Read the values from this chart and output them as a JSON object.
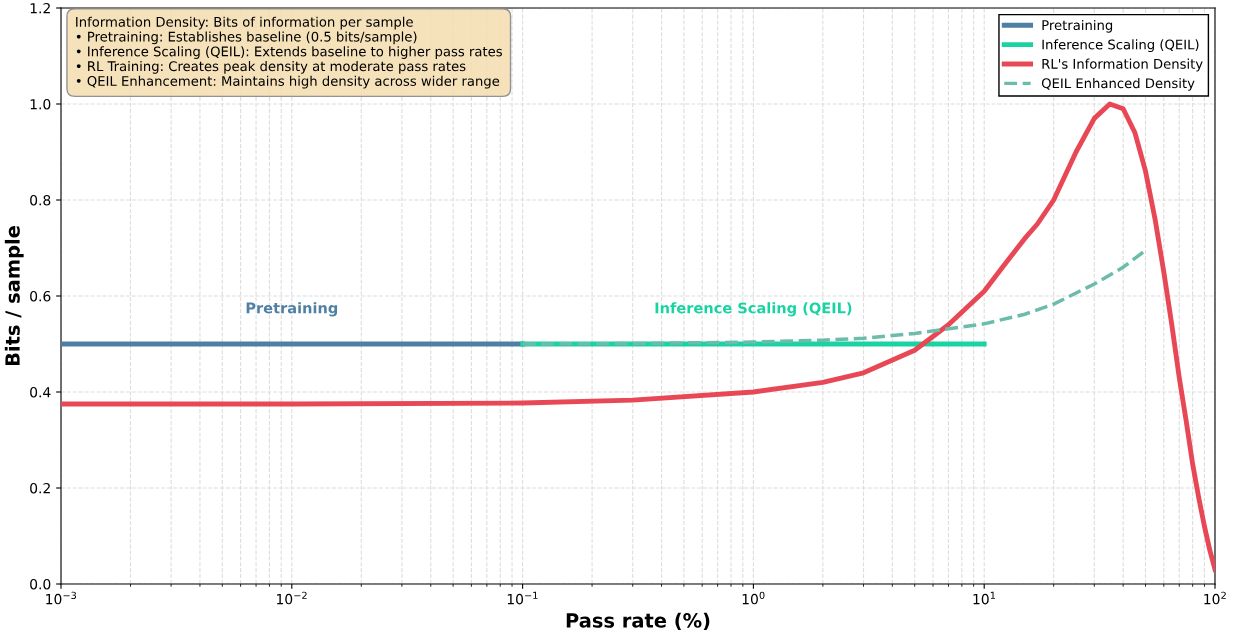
{
  "chart_data": {
    "type": "line",
    "xlabel": "Pass rate (%)",
    "ylabel": "Bits / sample",
    "log": "x",
    "xlim": [
      0.001,
      100
    ],
    "xticks": [
      {
        "value": 0.001,
        "label": "10$^{−3}$"
      },
      {
        "value": 0.01,
        "label": "10$^{−2}$"
      },
      {
        "value": 0.1,
        "label": "10$^{−1}$"
      },
      {
        "value": 1,
        "label": "10$^{0}$"
      },
      {
        "value": 10,
        "label": "10$^{1}$"
      },
      {
        "value": 100,
        "label": "10$^{2}$"
      }
    ],
    "ylim": [
      0,
      1.2
    ],
    "yticks": [
      {
        "value": 0,
        "label": "0.0"
      },
      {
        "value": 0.2,
        "label": "0.2"
      },
      {
        "value": 0.4,
        "label": "0.4"
      },
      {
        "value": 0.6,
        "label": "0.6"
      },
      {
        "value": 0.8,
        "label": "0.8"
      },
      {
        "value": 1.0,
        "label": "1.0"
      },
      {
        "value": 1.2,
        "label": "1.2"
      }
    ],
    "grid": true,
    "legend": "top right",
    "series": [
      {
        "name": "Pretraining",
        "color": "#4f7fa3",
        "x": [
          0.001,
          0.1
        ],
        "values": [
          0.5,
          0.5
        ]
      },
      {
        "name": "Inference Scaling (QEIL)",
        "color": "#1ad3a3",
        "x": [
          0.1,
          10
        ],
        "values": [
          0.5,
          0.5
        ]
      },
      {
        "name": "RL's Information Density",
        "color": "#e84855",
        "x": [
          0.001,
          0.01,
          0.1,
          0.3,
          1,
          2,
          3,
          5,
          7,
          10,
          12,
          15,
          17,
          20,
          25,
          30,
          35,
          40,
          45,
          50,
          55,
          60,
          65,
          70,
          75,
          80,
          85,
          90,
          95,
          100
        ],
        "values": [
          0.375,
          0.375,
          0.377,
          0.383,
          0.4,
          0.42,
          0.44,
          0.487,
          0.54,
          0.61,
          0.66,
          0.72,
          0.75,
          0.8,
          0.9,
          0.97,
          1.0,
          0.99,
          0.94,
          0.86,
          0.76,
          0.65,
          0.54,
          0.43,
          0.34,
          0.25,
          0.18,
          0.12,
          0.07,
          0.03
        ]
      },
      {
        "name": "QEIL Enhanced Density",
        "color": "#6bbcaa",
        "line_style": "dashed",
        "x": [
          0.1,
          0.3,
          1,
          2,
          3,
          5,
          10,
          15,
          20,
          30,
          40,
          50
        ],
        "values": [
          0.5,
          0.501,
          0.504,
          0.508,
          0.512,
          0.522,
          0.542,
          0.562,
          0.583,
          0.625,
          0.66,
          0.695
        ]
      }
    ],
    "annotations": [
      "Pretraining",
      "Inference Scaling (QEIL)",
      "Information Density: Bits of information per sample\n• Pretraining: Establishes baseline (0.5 bits/sample)\n• Inference Scaling (QEIL): Extends baseline to higher pass rates\n• RL Training: Creates peak density at moderate pass rates\n• QEIL Enhancement: Maintains high density across wider range"
    ]
  }
}
